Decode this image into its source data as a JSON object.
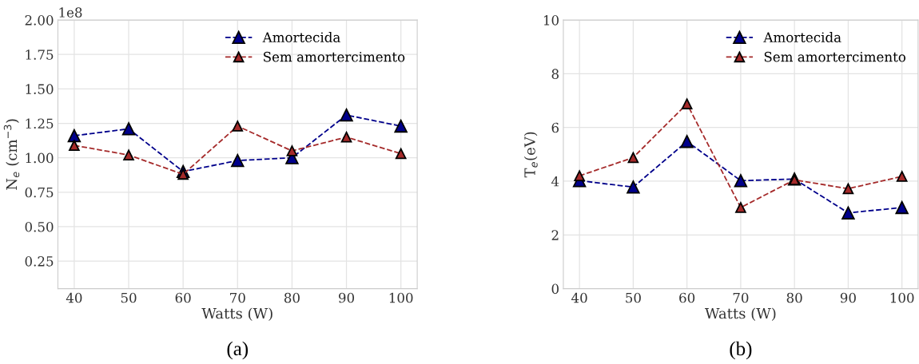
{
  "chart_data": [
    {
      "type": "line",
      "xlabel": "Watts (W)",
      "ylabel": "N$_{e}$ (cm$^{−3}$)",
      "x": [
        40,
        50,
        60,
        70,
        80,
        90,
        100
      ],
      "series": [
        {
          "name": "Amortecida",
          "color": "#00008b",
          "values": [
            1.16,
            1.21,
            0.9,
            0.98,
            1.0,
            1.31,
            1.23
          ]
        },
        {
          "name": "Sem amortercimento",
          "color": "#a52a2a",
          "values": [
            1.09,
            1.02,
            0.88,
            1.23,
            1.05,
            1.15,
            1.03
          ]
        }
      ],
      "xlim": [
        37,
        103
      ],
      "xticks": [
        40,
        50,
        60,
        70,
        80,
        90,
        100
      ],
      "ylim": [
        0.05,
        2.0
      ],
      "yticks": [
        {
          "value": 0.25,
          "label": "0.25"
        },
        {
          "value": 0.5,
          "label": "0.50"
        },
        {
          "value": 0.75,
          "label": "0.75"
        },
        {
          "value": 1.0,
          "label": "1.00"
        },
        {
          "value": 1.25,
          "label": "1.25"
        },
        {
          "value": 1.5,
          "label": "1.50"
        },
        {
          "value": 1.75,
          "label": "1.75"
        },
        {
          "value": 2.0,
          "label": "2.00"
        }
      ],
      "annotations": [
        "1e8",
        "(a)"
      ],
      "grid": true,
      "legend": "top right",
      "marker": "triangle",
      "line_style": "dashed"
    },
    {
      "type": "line",
      "xlabel": "Watts (W)",
      "ylabel": "T$_{e}$(eV)",
      "x": [
        40,
        50,
        60,
        70,
        80,
        90,
        100
      ],
      "series": [
        {
          "name": "Amortecida",
          "color": "#00008b",
          "values": [
            4.02,
            3.78,
            5.48,
            4.02,
            4.08,
            2.82,
            3.02
          ]
        },
        {
          "name": "Sem amortercimento",
          "color": "#a52a2a",
          "values": [
            4.2,
            4.88,
            6.88,
            3.02,
            4.05,
            3.72,
            4.18
          ]
        }
      ],
      "xlim": [
        37,
        103
      ],
      "xticks": [
        40,
        50,
        60,
        70,
        80,
        90,
        100
      ],
      "ylim": [
        0,
        10
      ],
      "yticks": [
        0,
        2,
        4,
        6,
        8,
        10
      ],
      "annotations": [
        "(b)"
      ],
      "grid": true,
      "legend": "top right",
      "marker": "triangle",
      "line_style": "dashed"
    }
  ]
}
